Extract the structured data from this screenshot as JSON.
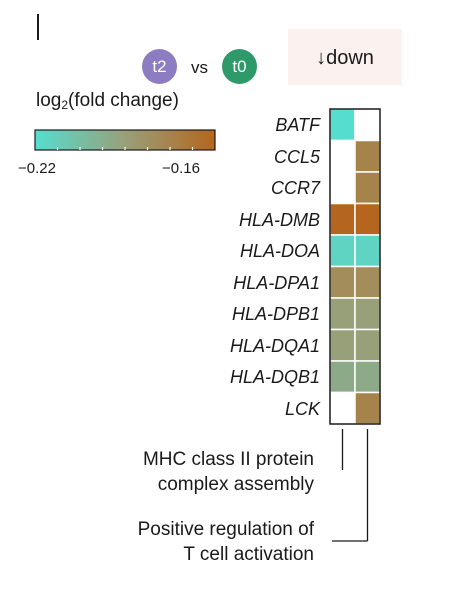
{
  "comparison": {
    "left_label": "t2",
    "left_color": "#8e7cc3",
    "vs_label": "vs",
    "right_label": "t0",
    "right_color": "#2e9a6a"
  },
  "direction_label": "↓down",
  "colorbar": {
    "title_prefix": "log",
    "title_sub": "2",
    "title_suffix": "(fold change)",
    "min_label": "−0.22",
    "max_label": "−0.16",
    "min_value": -0.22,
    "max_value": -0.16,
    "colors": [
      "#55ded0",
      "#98a07a",
      "#b5661e"
    ]
  },
  "chart_data": {
    "type": "heatmap",
    "title": "",
    "rows": [
      "BATF",
      "CCL5",
      "CCR7",
      "HLA-DMB",
      "HLA-DOA",
      "HLA-DPA1",
      "HLA-DPB1",
      "HLA-DQA1",
      "HLA-DQB1",
      "LCK"
    ],
    "columns": [
      "MHC class II protein complex assembly",
      "Positive regulation of T cell activation"
    ],
    "values": [
      [
        -0.22,
        null
      ],
      [
        null,
        -0.175
      ],
      [
        null,
        -0.175
      ],
      [
        -0.16,
        -0.16
      ],
      [
        -0.215,
        -0.215
      ],
      [
        -0.18,
        -0.18
      ],
      [
        -0.19,
        -0.19
      ],
      [
        -0.19,
        -0.19
      ],
      [
        -0.195,
        -0.195
      ],
      [
        null,
        -0.175
      ]
    ],
    "colorbar_range": [
      -0.22,
      -0.16
    ],
    "colorbar_label": "log2(fold change)",
    "legend_placement": "top-left"
  },
  "terms": [
    {
      "line1": "MHC class II protein",
      "line2": "complex assembly"
    },
    {
      "line1": "Positive regulation of",
      "line2": "T cell activation"
    }
  ]
}
